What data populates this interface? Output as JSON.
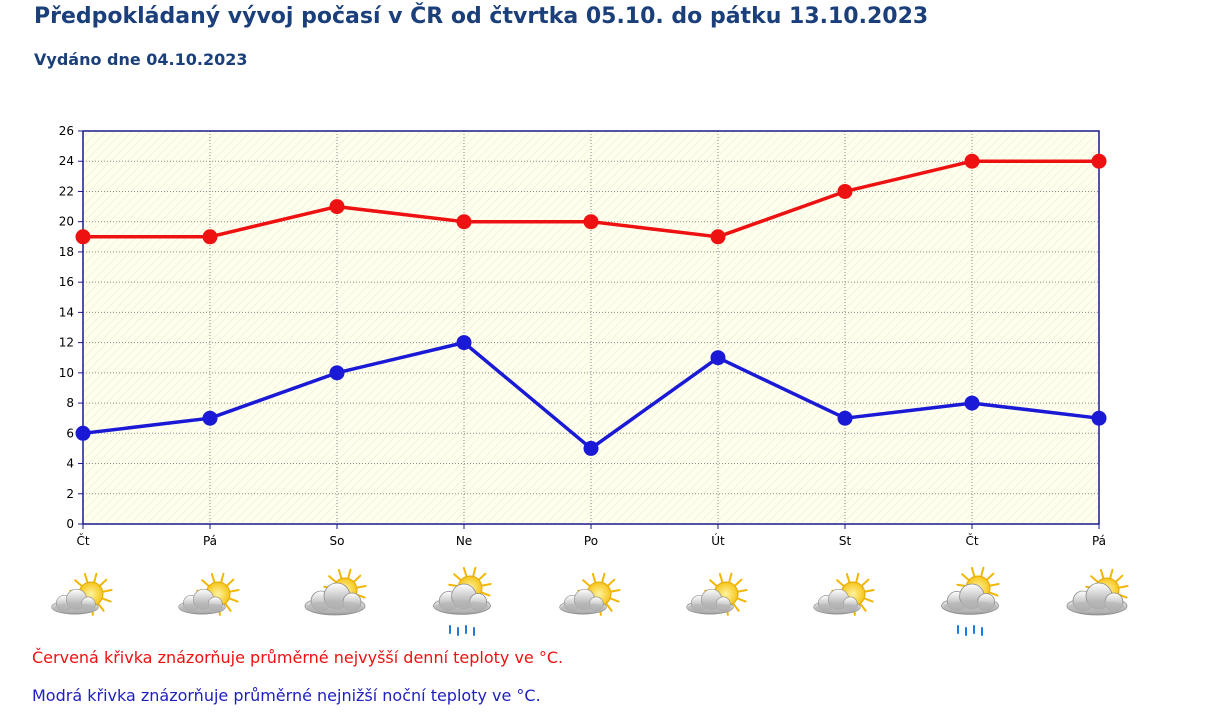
{
  "header": {
    "title": "Předpokládaný vývoj počasí v ČR od čtvrtka 05.10. do pátku 13.10.2023",
    "issued": "Vydáno dne 04.10.2023"
  },
  "chart_data": {
    "type": "line",
    "categories": [
      "Čt",
      "Pá",
      "So",
      "Ne",
      "Po",
      "Út",
      "St",
      "Čt",
      "Pá"
    ],
    "series": [
      {
        "name": "",
        "color": "#ee1111",
        "values": [
          19,
          19,
          21,
          20,
          20,
          19,
          22,
          24,
          24
        ]
      },
      {
        "name": "",
        "color": "#1a1ad6",
        "values": [
          6,
          7,
          10,
          12,
          5,
          11,
          7,
          8,
          7
        ]
      }
    ],
    "ylim": [
      0,
      26
    ],
    "yticks": [
      0,
      2,
      4,
      6,
      8,
      10,
      12,
      14,
      16,
      18,
      20,
      22,
      24,
      26
    ],
    "xlabel": "",
    "ylabel": "",
    "grid": true,
    "plot_background": "#ffffee",
    "axis_color": "#1a1a8a",
    "weather_icons": [
      "partly-cloudy-icon",
      "partly-cloudy-icon",
      "mostly-cloudy-icon",
      "cloudy-rain-icon",
      "partly-cloudy-icon",
      "partly-cloudy-icon",
      "partly-cloudy-icon",
      "cloudy-rain-icon",
      "mostly-cloudy-icon"
    ]
  },
  "legend_notes": {
    "red": "Červená křivka znázorňuje průměrné nejvyšší denní teploty ve °C.",
    "blue": "Modrá křivka znázorňuje průměrné nejnižší noční teploty ve °C.",
    "red_color": "#ee1111",
    "blue_color": "#2020c0"
  }
}
